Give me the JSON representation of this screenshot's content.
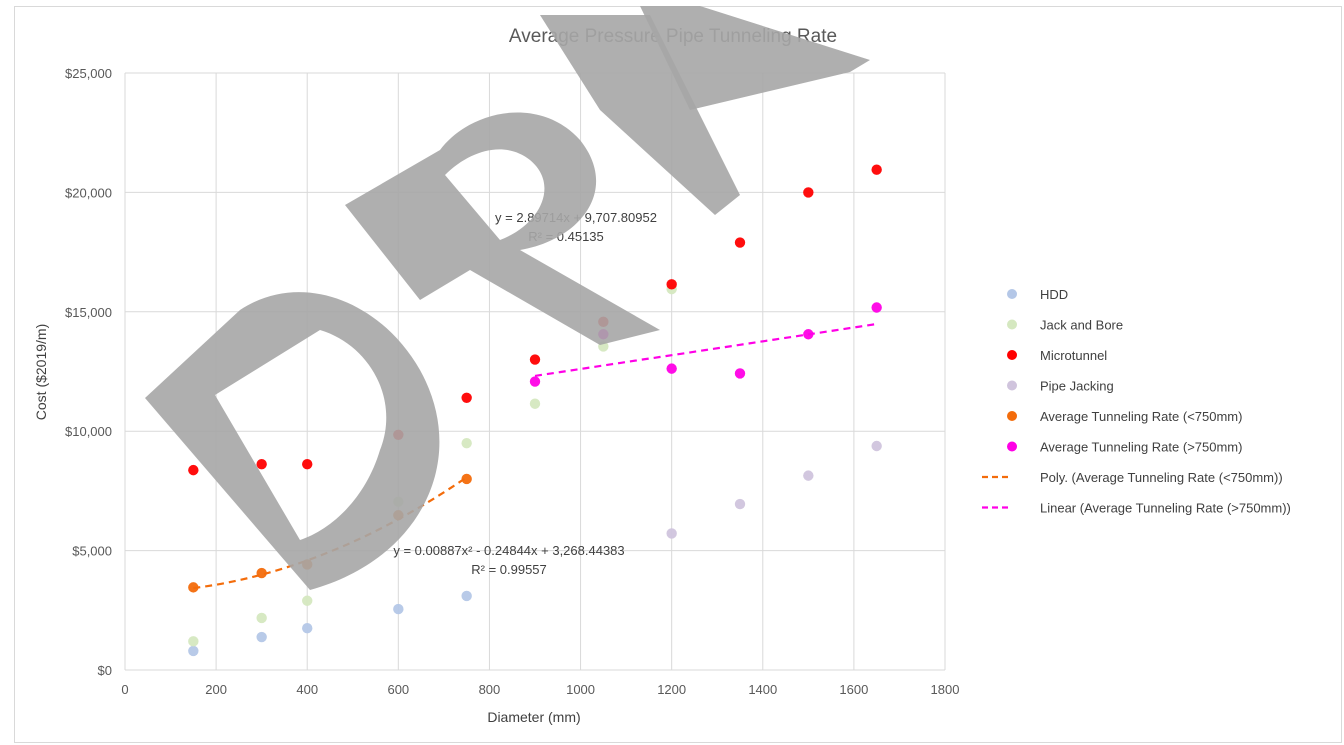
{
  "chart_data": {
    "type": "scatter",
    "title": "Average Pressure Pipe Tunneling Rate",
    "xlabel": "Diameter (mm)",
    "ylabel": "Cost ($2019/m)",
    "xlim": [
      0,
      1800
    ],
    "ylim": [
      0,
      25000
    ],
    "x_ticks": [
      "0",
      "200",
      "400",
      "600",
      "800",
      "1000",
      "1200",
      "1400",
      "1600",
      "1800"
    ],
    "y_ticks": [
      "$0",
      "$5,000",
      "$10,000",
      "$15,000",
      "$20,000",
      "$25,000"
    ],
    "grid": true,
    "legend_position": "right",
    "watermark": "DRAFT",
    "series": [
      {
        "name": "HDD",
        "color": "#b4c7e7",
        "points": [
          [
            150,
            800
          ],
          [
            300,
            1380
          ],
          [
            400,
            1750
          ],
          [
            600,
            2550
          ],
          [
            750,
            3100
          ]
        ]
      },
      {
        "name": "Jack and Bore",
        "color": "#d5e8c0",
        "points": [
          [
            150,
            1200
          ],
          [
            300,
            2180
          ],
          [
            400,
            2900
          ],
          [
            600,
            7050
          ],
          [
            750,
            9500
          ],
          [
            900,
            11150
          ],
          [
            1050,
            13550
          ],
          [
            1200,
            15950
          ]
        ]
      },
      {
        "name": "Microtunnel",
        "color": "#ff0000",
        "points": [
          [
            150,
            8370
          ],
          [
            300,
            8620
          ],
          [
            400,
            8620
          ],
          [
            600,
            9850
          ],
          [
            750,
            11400
          ],
          [
            900,
            13000
          ],
          [
            1050,
            14580
          ],
          [
            1200,
            16150
          ],
          [
            1350,
            17900
          ],
          [
            1500,
            20000
          ],
          [
            1650,
            20950
          ]
        ]
      },
      {
        "name": "Pipe Jacking",
        "color": "#d0c4dd",
        "points": [
          [
            1200,
            5720
          ],
          [
            1350,
            6950
          ],
          [
            1500,
            8140
          ],
          [
            1650,
            9380
          ]
        ]
      },
      {
        "name": "Average Tunneling Rate (<750mm)",
        "color": "#f36c0b",
        "points": [
          [
            150,
            3460
          ],
          [
            300,
            4060
          ],
          [
            400,
            4420
          ],
          [
            600,
            6480
          ],
          [
            750,
            8000
          ]
        ]
      },
      {
        "name": "Average Tunneling Rate (>750mm)",
        "color": "#ff00e6",
        "points": [
          [
            900,
            12080
          ],
          [
            1050,
            14060
          ],
          [
            1200,
            12620
          ],
          [
            1350,
            12420
          ],
          [
            1500,
            14060
          ],
          [
            1650,
            15180
          ]
        ]
      }
    ],
    "trendlines": [
      {
        "name": "Poly. (Average Tunneling Rate (<750mm))",
        "color": "#f36c0b",
        "type": "poly",
        "coefficients": [
          0.00887,
          -0.24844,
          3268.44383
        ],
        "x_range": [
          150,
          750
        ],
        "equation": "y = 0.00887x² - 0.24844x + 3,268.44383",
        "r2": "R² = 0.99557"
      },
      {
        "name": "Linear (Average Tunneling Rate (>750mm))",
        "color": "#ff00e6",
        "type": "linear",
        "coefficients": [
          2.89714,
          9707.80952
        ],
        "x_range": [
          900,
          1650
        ],
        "equation": "y = 2.89714x + 9,707.80952",
        "r2": "R² = 0.45135"
      }
    ]
  }
}
